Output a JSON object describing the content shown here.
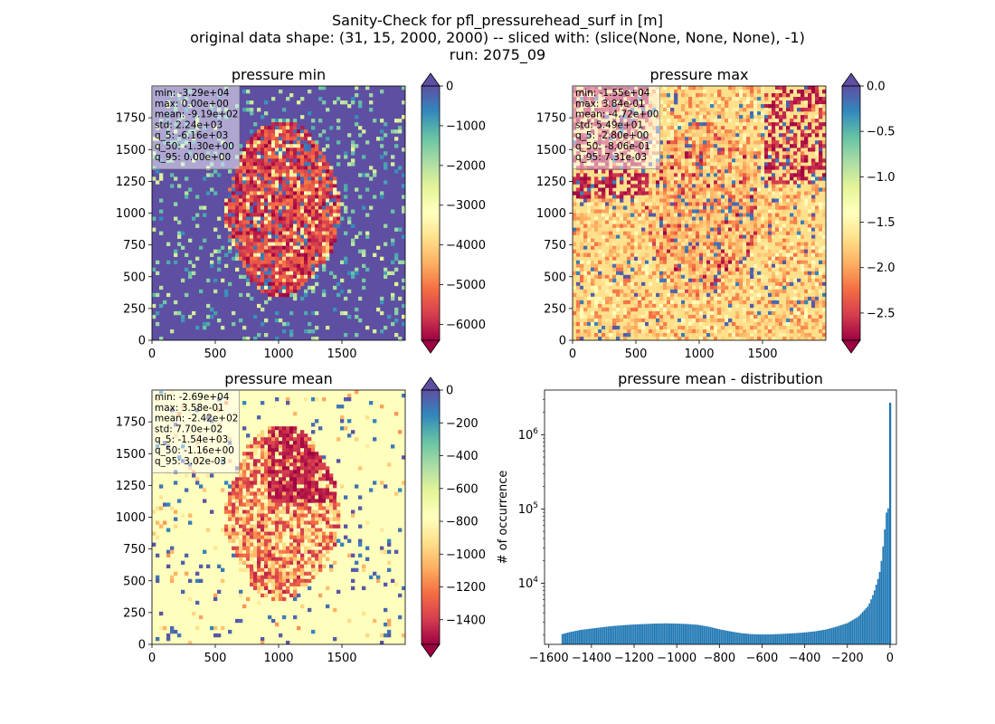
{
  "figure": {
    "title_lines": [
      "Sanity-Check for pfl_pressurehead_surf in [m]",
      "original data shape: (31, 15, 2000, 2000) -- sliced with: (slice(None, None, None), -1)",
      "run: 2075_09"
    ]
  },
  "chart_data": [
    {
      "type": "heatmap",
      "title": "pressure min",
      "colormap": "Spectral",
      "background_value_color": "#5e4fa2",
      "xlim": [
        0,
        2000
      ],
      "ylim": [
        0,
        2000
      ],
      "xticks": [
        0,
        500,
        1000,
        1500
      ],
      "yticks": [
        0,
        250,
        500,
        750,
        1000,
        1250,
        1500,
        1750
      ],
      "colorbar": {
        "range": [
          -6400,
          0
        ],
        "ticks": [
          0,
          -1000,
          -2000,
          -3000,
          -4000,
          -5000,
          -6000
        ],
        "extend": "both"
      },
      "stats": [
        "min: -3.29e+04",
        "max: 0.00e+00",
        "mean: -9.19e+02",
        "std: 2.24e+03",
        "q_5: -6.16e+03",
        "q_50: -1.30e+00",
        "q_95: 0.00e+00"
      ]
    },
    {
      "type": "heatmap",
      "title": "pressure max",
      "colormap": "Spectral",
      "background_value_color": "#fee08b",
      "xlim": [
        0,
        2000
      ],
      "ylim": [
        0,
        2000
      ],
      "xticks": [
        0,
        500,
        1000,
        1500
      ],
      "yticks": [
        0,
        250,
        500,
        750,
        1000,
        1250,
        1500,
        1750
      ],
      "colorbar": {
        "range": [
          -2.8,
          0
        ],
        "ticks": [
          0.0,
          -0.5,
          -1.0,
          -1.5,
          -2.0,
          -2.5
        ],
        "tick_labels": [
          "0.0",
          "−0.5",
          "−1.0",
          "−1.5",
          "−2.0",
          "−2.5"
        ],
        "extend": "both"
      },
      "stats": [
        "min: -1.55e+04",
        "max: 3.84e-01",
        "mean: -4.72e+00",
        "std: 5.49e+01",
        "q_5: -2.80e+00",
        "q_50: -8.06e-01",
        "q_95: 7.31e-03"
      ]
    },
    {
      "type": "heatmap",
      "title": "pressure mean",
      "colormap": "Spectral",
      "background_value_color": "#fefebd",
      "xlim": [
        0,
        2000
      ],
      "ylim": [
        0,
        2000
      ],
      "xticks": [
        0,
        500,
        1000,
        1500
      ],
      "yticks": [
        0,
        250,
        500,
        750,
        1000,
        1250,
        1500,
        1750
      ],
      "colorbar": {
        "range": [
          -1550,
          0
        ],
        "ticks": [
          0,
          -200,
          -400,
          -600,
          -800,
          -1000,
          -1200,
          -1400
        ],
        "extend": "both"
      },
      "stats": [
        "min: -2.69e+04",
        "max: 3.58e-01",
        "mean: -2.42e+02",
        "std: 7.70e+02",
        "q_5: -1.54e+03",
        "q_50: -1.16e+00",
        "q_95: 3.02e-03"
      ]
    },
    {
      "type": "bar",
      "title": "pressure mean - distribution",
      "xlabel": "",
      "ylabel": "# of occurrence",
      "yscale": "log",
      "xlim": [
        -1620,
        30
      ],
      "ylim": [
        1500,
        4000000
      ],
      "xticks": [
        -1600,
        -1400,
        -1200,
        -1000,
        -800,
        -600,
        -400,
        -200,
        0
      ],
      "yticks": [
        10000,
        100000,
        1000000
      ],
      "ytick_labels": [
        "10^4",
        "10^5",
        "10^6"
      ],
      "bar_color": "#1f77b4",
      "bin_width": 8,
      "bins": [
        [
          -1540,
          2050
        ],
        [
          -1500,
          2200
        ],
        [
          -1450,
          2350
        ],
        [
          -1400,
          2450
        ],
        [
          -1350,
          2550
        ],
        [
          -1300,
          2650
        ],
        [
          -1250,
          2720
        ],
        [
          -1200,
          2780
        ],
        [
          -1150,
          2820
        ],
        [
          -1100,
          2860
        ],
        [
          -1050,
          2880
        ],
        [
          -1000,
          2860
        ],
        [
          -950,
          2820
        ],
        [
          -900,
          2750
        ],
        [
          -850,
          2600
        ],
        [
          -800,
          2400
        ],
        [
          -750,
          2250
        ],
        [
          -700,
          2130
        ],
        [
          -650,
          2060
        ],
        [
          -600,
          2040
        ],
        [
          -550,
          2050
        ],
        [
          -500,
          2080
        ],
        [
          -450,
          2120
        ],
        [
          -400,
          2170
        ],
        [
          -350,
          2250
        ],
        [
          -300,
          2380
        ],
        [
          -250,
          2600
        ],
        [
          -200,
          2900
        ],
        [
          -150,
          3500
        ],
        [
          -100,
          5000
        ],
        [
          -75,
          7500
        ],
        [
          -50,
          13000
        ],
        [
          -40,
          20000
        ],
        [
          -30,
          35000
        ],
        [
          -20,
          70000
        ],
        [
          -15,
          95000
        ],
        [
          -10,
          120000
        ],
        [
          -5,
          80000
        ],
        [
          0,
          2700000
        ],
        [
          5,
          200000
        ]
      ]
    }
  ]
}
